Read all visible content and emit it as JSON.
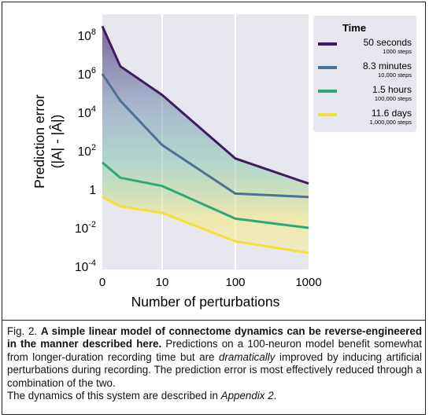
{
  "chart_data": {
    "type": "line",
    "xlabel": "Number of perturbations",
    "ylabel_line1": "Prediction error",
    "ylabel_line2": "(|A| - |Â|)",
    "x_ticks": [
      "0",
      "10",
      "100",
      "1000"
    ],
    "y_ticks": [
      {
        "base": "10",
        "exp": "8",
        "value": 100000000
      },
      {
        "base": "10",
        "exp": "6",
        "value": 1000000
      },
      {
        "base": "10",
        "exp": "4",
        "value": 10000
      },
      {
        "base": "10",
        "exp": "2",
        "value": 100
      },
      {
        "base": "1",
        "exp": "",
        "value": 1
      },
      {
        "base": "10",
        "exp": "-2",
        "value": 0.01
      },
      {
        "base": "10",
        "exp": "-4",
        "value": 0.0001
      }
    ],
    "y_scale": "log",
    "ylim": [
      5e-05,
      500000000
    ],
    "grid": true,
    "legend_position": "top-right",
    "legend_title": "Time",
    "series": [
      {
        "name": "50 seconds",
        "sublabel": "1000 steps",
        "color": "#3f1a5e",
        "points": [
          [
            0,
            300000000
          ],
          [
            3,
            2500000
          ],
          [
            10,
            80000
          ],
          [
            100,
            40
          ],
          [
            1000,
            2
          ]
        ]
      },
      {
        "name": "8.3 minutes",
        "sublabel": "10,000 steps",
        "color": "#4d7196",
        "points": [
          [
            0,
            1000000
          ],
          [
            3,
            40000
          ],
          [
            10,
            200
          ],
          [
            100,
            0.6
          ],
          [
            1000,
            0.4
          ]
        ]
      },
      {
        "name": "1.5 hours",
        "sublabel": "100,000 steps",
        "color": "#2fa877",
        "points": [
          [
            0,
            25
          ],
          [
            3,
            4
          ],
          [
            10,
            1.5
          ],
          [
            100,
            0.03
          ],
          [
            1000,
            0.01
          ]
        ]
      },
      {
        "name": "11.6 days",
        "sublabel": "1,000,000 steps",
        "color": "#f2df3a",
        "points": [
          [
            0,
            0.4
          ],
          [
            3,
            0.13
          ],
          [
            10,
            0.06
          ],
          [
            100,
            0.002
          ],
          [
            1000,
            0.0005
          ]
        ]
      }
    ]
  },
  "caption": {
    "prefix": "Fig. 2. ",
    "bold": "A simple linear model of connectome dynamics can be reverse-engineered in the manner described here.",
    "text1": " Predictions on a 100-neuron model benefit somewhat from longer-duration recording time but are ",
    "emph": "dramatically",
    "text2": " improved by inducing artificial perturbations during recording. The prediction error is most effectively reduced through a combination of the two.",
    "text3": "The dynamics of this system are described in ",
    "appendix": "Appendix 2",
    "text4": "."
  }
}
